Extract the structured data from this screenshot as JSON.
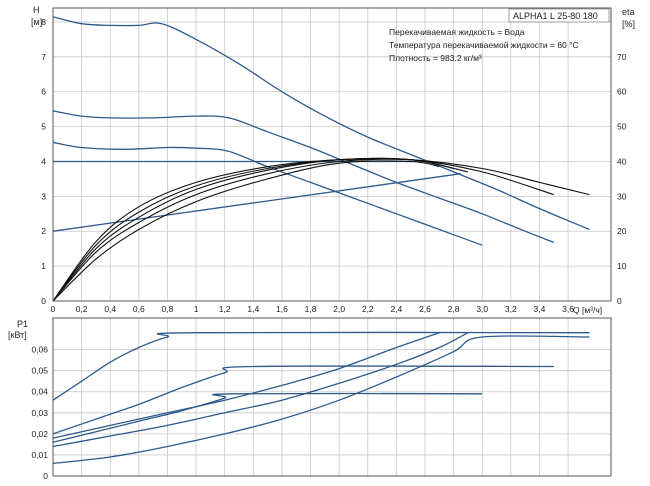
{
  "chart_data": [
    {
      "type": "line",
      "panel": "H-Q / eta-Q",
      "title": "ALPHA1 L 25-80 180",
      "info_lines": [
        "Перекачиваемая жидкость = Вода",
        "Температура перекачиваемой жидкости = 60 °C",
        "Плотность = 983.2 кг/м³"
      ],
      "ylabel": "H",
      "ylabel_unit": "[м]",
      "y2label": "eta",
      "y2label_unit": "[%]",
      "xlabel": "Q [м³/ч]",
      "xlim": [
        0,
        3.9
      ],
      "ylim": [
        0,
        8.4
      ],
      "y2lim": [
        0,
        84
      ],
      "x_ticks": [
        "0",
        "0,2",
        "0,4",
        "0,6",
        "0,8",
        "1",
        "1,2",
        "1,4",
        "1,6",
        "1,8",
        "2,0",
        "2,2",
        "2,4",
        "2,6",
        "2,8",
        "3,0",
        "3,2",
        "3,4",
        "3,6"
      ],
      "y_ticks": [
        "0",
        "1",
        "2",
        "3",
        "4",
        "5",
        "6",
        "7",
        "8"
      ],
      "y2_ticks": [
        "0",
        "10",
        "20",
        "30",
        "40",
        "50",
        "60",
        "70"
      ],
      "grid": true,
      "series": [
        {
          "kind": "head",
          "color": "#2c5a8c",
          "x": [
            0,
            0.2,
            0.4,
            0.6,
            0.76,
            1.0,
            1.3,
            1.6,
            1.9,
            2.2,
            2.5,
            2.8,
            3.1,
            3.4,
            3.75
          ],
          "y": [
            8.15,
            7.95,
            7.9,
            7.9,
            7.95,
            7.5,
            6.8,
            6.0,
            5.3,
            4.7,
            4.2,
            3.7,
            3.2,
            2.65,
            2.05
          ]
        },
        {
          "kind": "head",
          "color": "#2c5a8c",
          "x": [
            0,
            0.2,
            0.4,
            0.7,
            1.0,
            1.23,
            1.5,
            1.8,
            2.1,
            2.4,
            2.7,
            3.0,
            3.3,
            3.5
          ],
          "y": [
            5.45,
            5.3,
            5.25,
            5.25,
            5.3,
            5.25,
            4.85,
            4.4,
            3.9,
            3.4,
            2.95,
            2.5,
            2.0,
            1.68
          ]
        },
        {
          "kind": "head",
          "color": "#2c5a8c",
          "x": [
            0,
            0.2,
            0.5,
            0.8,
            1.0,
            1.22,
            1.5,
            1.8,
            2.1,
            2.4,
            2.7,
            3.0
          ],
          "y": [
            4.55,
            4.4,
            4.35,
            4.4,
            4.38,
            4.3,
            3.85,
            3.4,
            2.95,
            2.5,
            2.05,
            1.6
          ]
        },
        {
          "kind": "constant-pressure",
          "color": "#2c5a8c",
          "x": [
            0,
            2.6
          ],
          "y": [
            4.0,
            4.0
          ]
        },
        {
          "kind": "proportional-pressure",
          "color": "#2c5a8c",
          "x": [
            0,
            2.85
          ],
          "y": [
            2.0,
            3.65
          ]
        },
        {
          "kind": "efficiency",
          "color": "#111111",
          "x": [
            0,
            0.3,
            0.6,
            1.0,
            1.5,
            2.0,
            2.5,
            3.0,
            3.4,
            3.75
          ],
          "y2": [
            0,
            17,
            27,
            34,
            38.5,
            40.5,
            40.5,
            38,
            34,
            30.5
          ]
        },
        {
          "kind": "efficiency",
          "color": "#111111",
          "x": [
            0,
            0.3,
            0.6,
            1.0,
            1.5,
            2.0,
            2.5,
            3.0,
            3.5
          ],
          "y2": [
            0,
            16,
            25.5,
            33,
            38,
            40.5,
            40.5,
            37,
            30.5
          ]
        },
        {
          "kind": "efficiency",
          "color": "#111111",
          "x": [
            0,
            0.3,
            0.6,
            1.0,
            1.5,
            2.0,
            2.5,
            2.9
          ],
          "y2": [
            0,
            15,
            24,
            32,
            37.5,
            40.5,
            40.5,
            37
          ]
        },
        {
          "kind": "efficiency",
          "color": "#111111",
          "x": [
            0,
            0.3,
            0.6,
            1.0,
            1.5,
            2.0,
            2.5,
            2.8
          ],
          "y2": [
            0,
            14,
            22.5,
            30.5,
            36.5,
            40,
            40.5,
            38
          ]
        },
        {
          "kind": "efficiency",
          "color": "#111111",
          "x": [
            0,
            0.3,
            0.6,
            1.0,
            1.5,
            2.0,
            2.5,
            2.7
          ],
          "y2": [
            0,
            12,
            20.5,
            28.5,
            35,
            39.5,
            40,
            38.5
          ]
        }
      ]
    },
    {
      "type": "line",
      "panel": "P1-Q",
      "ylabel": "P1",
      "ylabel_unit": "[кВт]",
      "xlim": [
        0,
        3.9
      ],
      "ylim": [
        0,
        0.075
      ],
      "y_ticks": [
        "0",
        "0,01",
        "0,02",
        "0,03",
        "0,04",
        "0,05",
        "0,06"
      ],
      "grid": true,
      "series": [
        {
          "kind": "power",
          "color": "#2c5a8c",
          "x": [
            0,
            0.2,
            0.4,
            0.6,
            0.8,
            0.99,
            3.75
          ],
          "y": [
            0.036,
            0.045,
            0.054,
            0.061,
            0.066,
            0.068,
            0.068
          ]
        },
        {
          "kind": "power",
          "color": "#2c5a8c",
          "x": [
            0,
            0.3,
            0.6,
            0.9,
            1.2,
            1.4,
            3.5
          ],
          "y": [
            0.02,
            0.027,
            0.034,
            0.042,
            0.049,
            0.052,
            0.052
          ]
        },
        {
          "kind": "power",
          "color": "#2c5a8c",
          "x": [
            0,
            0.3,
            0.6,
            0.9,
            1.2,
            1.25,
            3.0
          ],
          "y": [
            0.016,
            0.021,
            0.026,
            0.031,
            0.037,
            0.039,
            0.039
          ]
        },
        {
          "kind": "power",
          "color": "#2c5a8c",
          "x": [
            0,
            0.4,
            0.8,
            1.2,
            1.6,
            2.0,
            2.4,
            2.7
          ],
          "y": [
            0.018,
            0.024,
            0.03,
            0.036,
            0.043,
            0.051,
            0.061,
            0.068
          ]
        },
        {
          "kind": "power",
          "color": "#2c5a8c",
          "x": [
            0,
            0.4,
            0.8,
            1.2,
            1.6,
            2.0,
            2.4,
            2.7,
            2.9
          ],
          "y": [
            0.014,
            0.019,
            0.024,
            0.03,
            0.036,
            0.044,
            0.053,
            0.061,
            0.068
          ]
        },
        {
          "kind": "power",
          "color": "#2c5a8c",
          "x": [
            0,
            0.4,
            0.8,
            1.2,
            1.6,
            2.0,
            2.4,
            2.8,
            3.0,
            3.75
          ],
          "y": [
            0.006,
            0.009,
            0.014,
            0.02,
            0.027,
            0.036,
            0.047,
            0.059,
            0.066,
            0.066
          ]
        }
      ]
    }
  ]
}
